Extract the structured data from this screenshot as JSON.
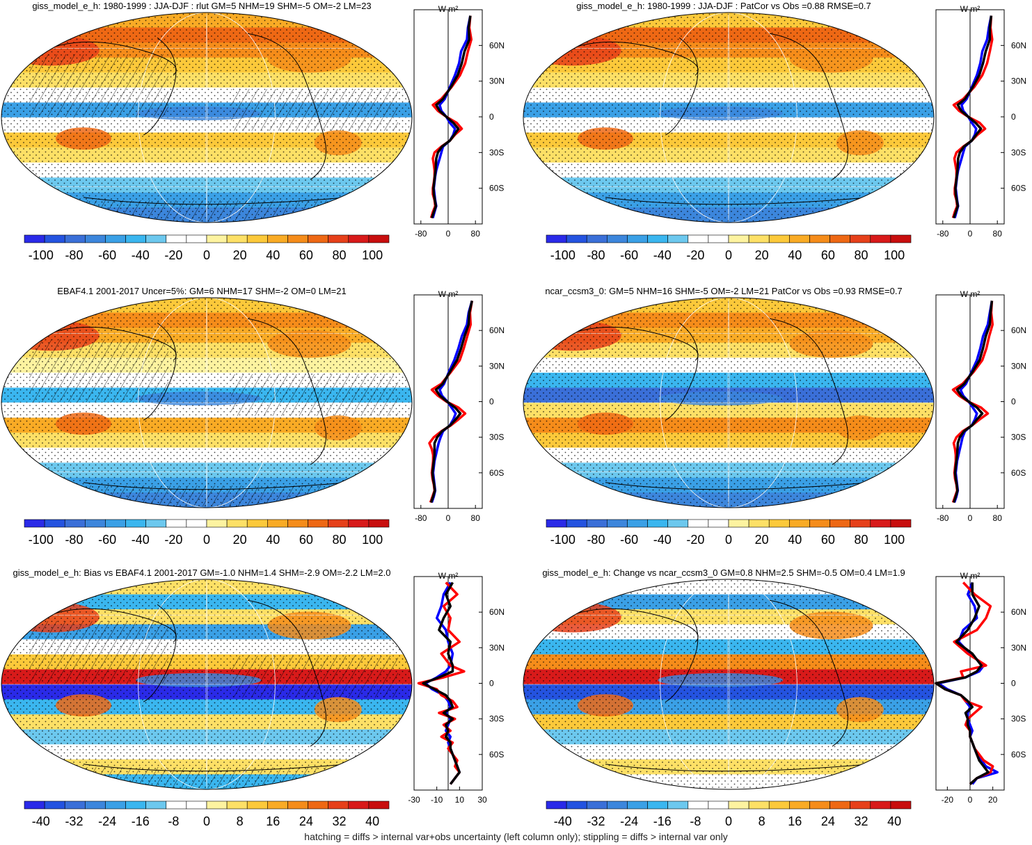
{
  "footer_note": "hatching = diffs > internal var+obs uncertainty (left column only); stippling = diffs > internal var only",
  "colors": {
    "scale": [
      "#2a2ae8",
      "#2453e0",
      "#3a6fd8",
      "#3c86dc",
      "#3aa0e6",
      "#3ab6ef",
      "#6cc8ee",
      "#ffffff",
      "#ffffff",
      "#fdf3a0",
      "#fde066",
      "#fcc93a",
      "#f9ab25",
      "#f58c1a",
      "#ee6814",
      "#e6401a",
      "#d81a1a",
      "#c80e0e"
    ],
    "zonal_model": "#0000ff",
    "zonal_obs": "#ff0000",
    "zonal_mean": "#000000"
  },
  "chart_data": [
    {
      "type": "map+zonal-profile",
      "panel": "top-left",
      "title": "giss_model_e_h: 1980-1999 : JJA-DJF : rlut GM=5 NHM=19 SHM=-5 OM=-2 LM=23",
      "colorbar_ticks": [
        "-100",
        "-80",
        "-60",
        "-40",
        "-20",
        "0",
        "20",
        "40",
        "60",
        "80",
        "100"
      ],
      "colorbar_range": [
        -110,
        110
      ],
      "zonal_unit": "W m²",
      "zonal_xticks": [
        "-80",
        "0",
        "80"
      ],
      "zonal_xtick_values": [
        -80,
        0,
        80
      ],
      "zonal_xlim": [
        -100,
        100
      ],
      "lat_ticks": [
        "60N",
        "30N",
        "0",
        "30S",
        "60S"
      ],
      "lat_tick_values": [
        60,
        30,
        0,
        -30,
        -60
      ],
      "lat": [
        85,
        75,
        65,
        55,
        45,
        35,
        25,
        15,
        10,
        5,
        0,
        -5,
        -10,
        -15,
        -20,
        -25,
        -30,
        -35,
        -40,
        -45,
        -50,
        -55,
        -60,
        -65,
        -70,
        -75,
        -80,
        -85
      ],
      "zonal_series": [
        {
          "name": "model",
          "values": [
            65,
            58,
            55,
            38,
            32,
            20,
            5,
            -10,
            -25,
            -20,
            -5,
            5,
            20,
            15,
            5,
            -15,
            -20,
            -25,
            -30,
            -35,
            -38,
            -40,
            -42,
            -40,
            -38,
            -35,
            -40,
            -45
          ]
        },
        {
          "name": "obs",
          "values": [
            65,
            62,
            68,
            58,
            50,
            35,
            10,
            -20,
            -45,
            -30,
            -5,
            25,
            40,
            20,
            5,
            -20,
            -40,
            -45,
            -42,
            -40,
            -40,
            -42,
            -45,
            -45,
            -40,
            -38,
            -45,
            -50
          ]
        },
        {
          "name": "multi-model",
          "values": [
            65,
            60,
            62,
            48,
            40,
            28,
            8,
            -15,
            -35,
            -25,
            -5,
            15,
            30,
            18,
            5,
            -18,
            -30,
            -35,
            -36,
            -37,
            -39,
            -41,
            -43,
            -42,
            -39,
            -36,
            -42,
            -48
          ]
        }
      ]
    },
    {
      "type": "map+zonal-profile",
      "panel": "top-right",
      "title": "giss_model_e_h: 1980-1999 : JJA-DJF : PatCor vs Obs =0.88 RMSE=0.7",
      "colorbar_ticks": [
        "-100",
        "-80",
        "-60",
        "-40",
        "-20",
        "0",
        "20",
        "40",
        "60",
        "80",
        "100"
      ],
      "colorbar_range": [
        -110,
        110
      ],
      "zonal_unit": "W m²",
      "zonal_xticks": [
        "-80",
        "0",
        "80"
      ],
      "zonal_xtick_values": [
        -80,
        0,
        80
      ],
      "zonal_xlim": [
        -100,
        100
      ],
      "lat_ticks": [
        "60N",
        "30N",
        "0",
        "30S",
        "60S"
      ],
      "lat_tick_values": [
        60,
        30,
        0,
        -30,
        -60
      ],
      "lat": [
        85,
        75,
        65,
        55,
        45,
        35,
        25,
        15,
        10,
        5,
        0,
        -5,
        -10,
        -15,
        -20,
        -25,
        -30,
        -35,
        -40,
        -45,
        -50,
        -55,
        -60,
        -65,
        -70,
        -75,
        -80,
        -85
      ],
      "zonal_series": [
        {
          "name": "model",
          "values": [
            62,
            55,
            50,
            36,
            30,
            20,
            5,
            -10,
            -25,
            -20,
            -5,
            5,
            18,
            14,
            5,
            -15,
            -20,
            -25,
            -30,
            -35,
            -38,
            -40,
            -42,
            -40,
            -38,
            -35,
            -40,
            -45
          ]
        },
        {
          "name": "obs",
          "values": [
            62,
            60,
            65,
            58,
            50,
            36,
            12,
            -20,
            -48,
            -32,
            -5,
            28,
            44,
            22,
            5,
            -20,
            -40,
            -46,
            -43,
            -40,
            -40,
            -42,
            -45,
            -45,
            -40,
            -38,
            -45,
            -50
          ]
        },
        {
          "name": "multi-model",
          "values": [
            62,
            58,
            58,
            46,
            38,
            27,
            8,
            -15,
            -36,
            -26,
            -5,
            16,
            32,
            18,
            5,
            -18,
            -30,
            -35,
            -36,
            -37,
            -39,
            -41,
            -43,
            -42,
            -39,
            -36,
            -42,
            -48
          ]
        }
      ]
    },
    {
      "type": "map+zonal-profile",
      "panel": "middle-left",
      "title": "EBAF4.1 2001-2017 Uncer=5%: GM=6 NHM=17 SHM=-2 OM=0 LM=21",
      "colorbar_ticks": [
        "-100",
        "-80",
        "-60",
        "-40",
        "-20",
        "0",
        "20",
        "40",
        "60",
        "80",
        "100"
      ],
      "colorbar_range": [
        -110,
        110
      ],
      "zonal_unit": "W m²",
      "zonal_xticks": [
        "-80",
        "0",
        "80"
      ],
      "zonal_xtick_values": [
        -80,
        0,
        80
      ],
      "zonal_xlim": [
        -100,
        100
      ],
      "lat_ticks": [
        "60N",
        "30N",
        "0",
        "30S",
        "60S"
      ],
      "lat_tick_values": [
        60,
        30,
        0,
        -30,
        -60
      ],
      "lat": [
        85,
        75,
        65,
        55,
        45,
        35,
        25,
        15,
        10,
        5,
        0,
        -5,
        -10,
        -15,
        -20,
        -25,
        -30,
        -35,
        -40,
        -45,
        -50,
        -55,
        -60,
        -65,
        -70,
        -75,
        -80,
        -85
      ],
      "zonal_series": [
        {
          "name": "model",
          "values": [
            70,
            60,
            55,
            40,
            30,
            18,
            2,
            -12,
            -25,
            -18,
            -2,
            10,
            22,
            15,
            5,
            -15,
            -22,
            -28,
            -32,
            -36,
            -40,
            -42,
            -44,
            -42,
            -40,
            -38,
            -42,
            -48
          ]
        },
        {
          "name": "obs",
          "values": [
            70,
            64,
            66,
            56,
            46,
            34,
            8,
            -20,
            -48,
            -30,
            -5,
            30,
            50,
            30,
            8,
            -20,
            -42,
            -55,
            -48,
            -44,
            -44,
            -46,
            -48,
            -46,
            -42,
            -40,
            -46,
            -52
          ]
        },
        {
          "name": "multi-model",
          "values": [
            70,
            62,
            60,
            48,
            38,
            26,
            5,
            -16,
            -36,
            -24,
            -3,
            20,
            36,
            22,
            6,
            -18,
            -32,
            -40,
            -40,
            -40,
            -42,
            -44,
            -46,
            -44,
            -41,
            -39,
            -44,
            -50
          ]
        }
      ]
    },
    {
      "type": "map+zonal-profile",
      "panel": "middle-right",
      "title": "ncar_ccsm3_0: GM=5 NHM=16 SHM=-5 OM=-2 LM=21 PatCor vs Obs =0.93 RMSE=0.7",
      "colorbar_ticks": [
        "-100",
        "-80",
        "-60",
        "-40",
        "-20",
        "0",
        "20",
        "40",
        "60",
        "80",
        "100"
      ],
      "colorbar_range": [
        -110,
        110
      ],
      "zonal_unit": "W m²",
      "zonal_xticks": [
        "-80",
        "0",
        "80"
      ],
      "zonal_xtick_values": [
        -80,
        0,
        80
      ],
      "zonal_xlim": [
        -100,
        100
      ],
      "lat_ticks": [
        "60N",
        "30N",
        "0",
        "30S",
        "60S"
      ],
      "lat_tick_values": [
        60,
        30,
        0,
        -30,
        -60
      ],
      "lat": [
        85,
        75,
        65,
        55,
        45,
        35,
        25,
        15,
        10,
        5,
        0,
        -5,
        -10,
        -15,
        -20,
        -25,
        -30,
        -35,
        -40,
        -45,
        -50,
        -55,
        -60,
        -65,
        -70,
        -75,
        -80,
        -85
      ],
      "zonal_series": [
        {
          "name": "model",
          "values": [
            64,
            58,
            52,
            38,
            30,
            20,
            4,
            -12,
            -28,
            -20,
            -4,
            8,
            20,
            14,
            5,
            -15,
            -22,
            -26,
            -30,
            -34,
            -38,
            -40,
            -42,
            -40,
            -38,
            -36,
            -40,
            -46
          ]
        },
        {
          "name": "obs",
          "values": [
            64,
            62,
            66,
            56,
            48,
            36,
            10,
            -22,
            -50,
            -32,
            -5,
            32,
            52,
            28,
            6,
            -22,
            -40,
            -48,
            -44,
            -42,
            -42,
            -44,
            -46,
            -44,
            -40,
            -38,
            -44,
            -50
          ]
        },
        {
          "name": "multi-model",
          "values": [
            64,
            60,
            58,
            46,
            38,
            28,
            7,
            -17,
            -38,
            -26,
            -4,
            20,
            36,
            20,
            6,
            -18,
            -30,
            -36,
            -37,
            -38,
            -40,
            -42,
            -44,
            -42,
            -39,
            -37,
            -42,
            -48
          ]
        }
      ]
    },
    {
      "type": "map+zonal-profile",
      "panel": "bottom-left",
      "title": "giss_model_e_h: Bias vs EBAF4.1 2001-2017 GM=-1.0 NHM=1.4 SHM=-2.9 OM=-2.2 LM=2.0",
      "colorbar_ticks": [
        "-40",
        "-32",
        "-24",
        "-16",
        "-8",
        "0",
        "8",
        "16",
        "24",
        "32",
        "40"
      ],
      "colorbar_range": [
        -44,
        44
      ],
      "zonal_unit": "W m²",
      "zonal_xticks": [
        "-30",
        "-10",
        "10",
        "30"
      ],
      "zonal_xtick_values": [
        -30,
        -10,
        10,
        30
      ],
      "zonal_xlim": [
        -30,
        30
      ],
      "lat_ticks": [
        "60N",
        "30N",
        "0",
        "30S",
        "60S"
      ],
      "lat_tick_values": [
        60,
        30,
        0,
        -30,
        -60
      ],
      "lat": [
        85,
        75,
        65,
        55,
        45,
        35,
        25,
        15,
        10,
        5,
        0,
        -5,
        -10,
        -15,
        -20,
        -25,
        -30,
        -35,
        -40,
        -45,
        -50,
        -55,
        -60,
        -65,
        -70,
        -75,
        -80,
        -85
      ],
      "zonal_series": [
        {
          "name": "model",
          "values": [
            2,
            -4,
            -6,
            -10,
            -2,
            0,
            4,
            2,
            -2,
            -10,
            -20,
            -14,
            -4,
            0,
            2,
            -2,
            2,
            0,
            -2,
            2,
            0,
            2,
            4,
            6,
            8,
            10,
            6,
            2
          ]
        },
        {
          "name": "obs",
          "values": [
            -2,
            8,
            -4,
            2,
            0,
            10,
            -6,
            2,
            14,
            -4,
            -26,
            -10,
            -6,
            4,
            8,
            -8,
            6,
            -4,
            2,
            -6,
            4,
            0,
            4,
            8,
            6,
            10,
            6,
            2
          ]
        },
        {
          "name": "multi-model",
          "values": [
            4,
            -2,
            2,
            -4,
            -8,
            2,
            0,
            4,
            4,
            -8,
            -22,
            -12,
            -2,
            2,
            4,
            -4,
            4,
            -2,
            0,
            -2,
            2,
            2,
            4,
            6,
            8,
            10,
            6,
            2
          ]
        }
      ]
    },
    {
      "type": "map+zonal-profile",
      "panel": "bottom-right",
      "title": "giss_model_e_h: Change vs ncar_ccsm3_0 GM=0.8 NHM=2.5 SHM=-0.5 OM=0.4 LM=1.9",
      "colorbar_ticks": [
        "-40",
        "-32",
        "-24",
        "-16",
        "-8",
        "0",
        "8",
        "16",
        "24",
        "32",
        "40"
      ],
      "colorbar_range": [
        -44,
        44
      ],
      "zonal_unit": "W m²",
      "zonal_xticks": [
        "-20",
        "0",
        "20"
      ],
      "zonal_xtick_values": [
        -20,
        0,
        20
      ],
      "zonal_xlim": [
        -30,
        30
      ],
      "lat_ticks": [
        "60N",
        "30N",
        "0",
        "30S",
        "60S"
      ],
      "lat_tick_values": [
        60,
        30,
        0,
        -30,
        -60
      ],
      "lat": [
        85,
        75,
        65,
        55,
        45,
        35,
        25,
        15,
        10,
        5,
        0,
        -5,
        -10,
        -15,
        -20,
        -25,
        -30,
        -35,
        -40,
        -45,
        -50,
        -55,
        -60,
        -65,
        -70,
        -75,
        -80,
        -85
      ],
      "zonal_series": [
        {
          "name": "model",
          "values": [
            2,
            -2,
            4,
            6,
            -6,
            -10,
            0,
            12,
            8,
            -4,
            -28,
            -20,
            -8,
            -4,
            0,
            -2,
            -2,
            0,
            2,
            0,
            2,
            4,
            6,
            10,
            14,
            24,
            6,
            2
          ]
        },
        {
          "name": "obs",
          "values": [
            -6,
            4,
            18,
            14,
            6,
            -14,
            -2,
            14,
            -8,
            -6,
            -30,
            -22,
            -8,
            -4,
            10,
            4,
            -2,
            -4,
            0,
            0,
            2,
            4,
            8,
            12,
            20,
            18,
            6,
            0
          ]
        },
        {
          "name": "multi-model",
          "values": [
            2,
            2,
            8,
            4,
            -2,
            -12,
            2,
            10,
            6,
            -4,
            -30,
            -22,
            -8,
            -2,
            2,
            -4,
            -2,
            -2,
            0,
            0,
            2,
            4,
            6,
            8,
            12,
            16,
            6,
            0
          ]
        }
      ]
    }
  ]
}
